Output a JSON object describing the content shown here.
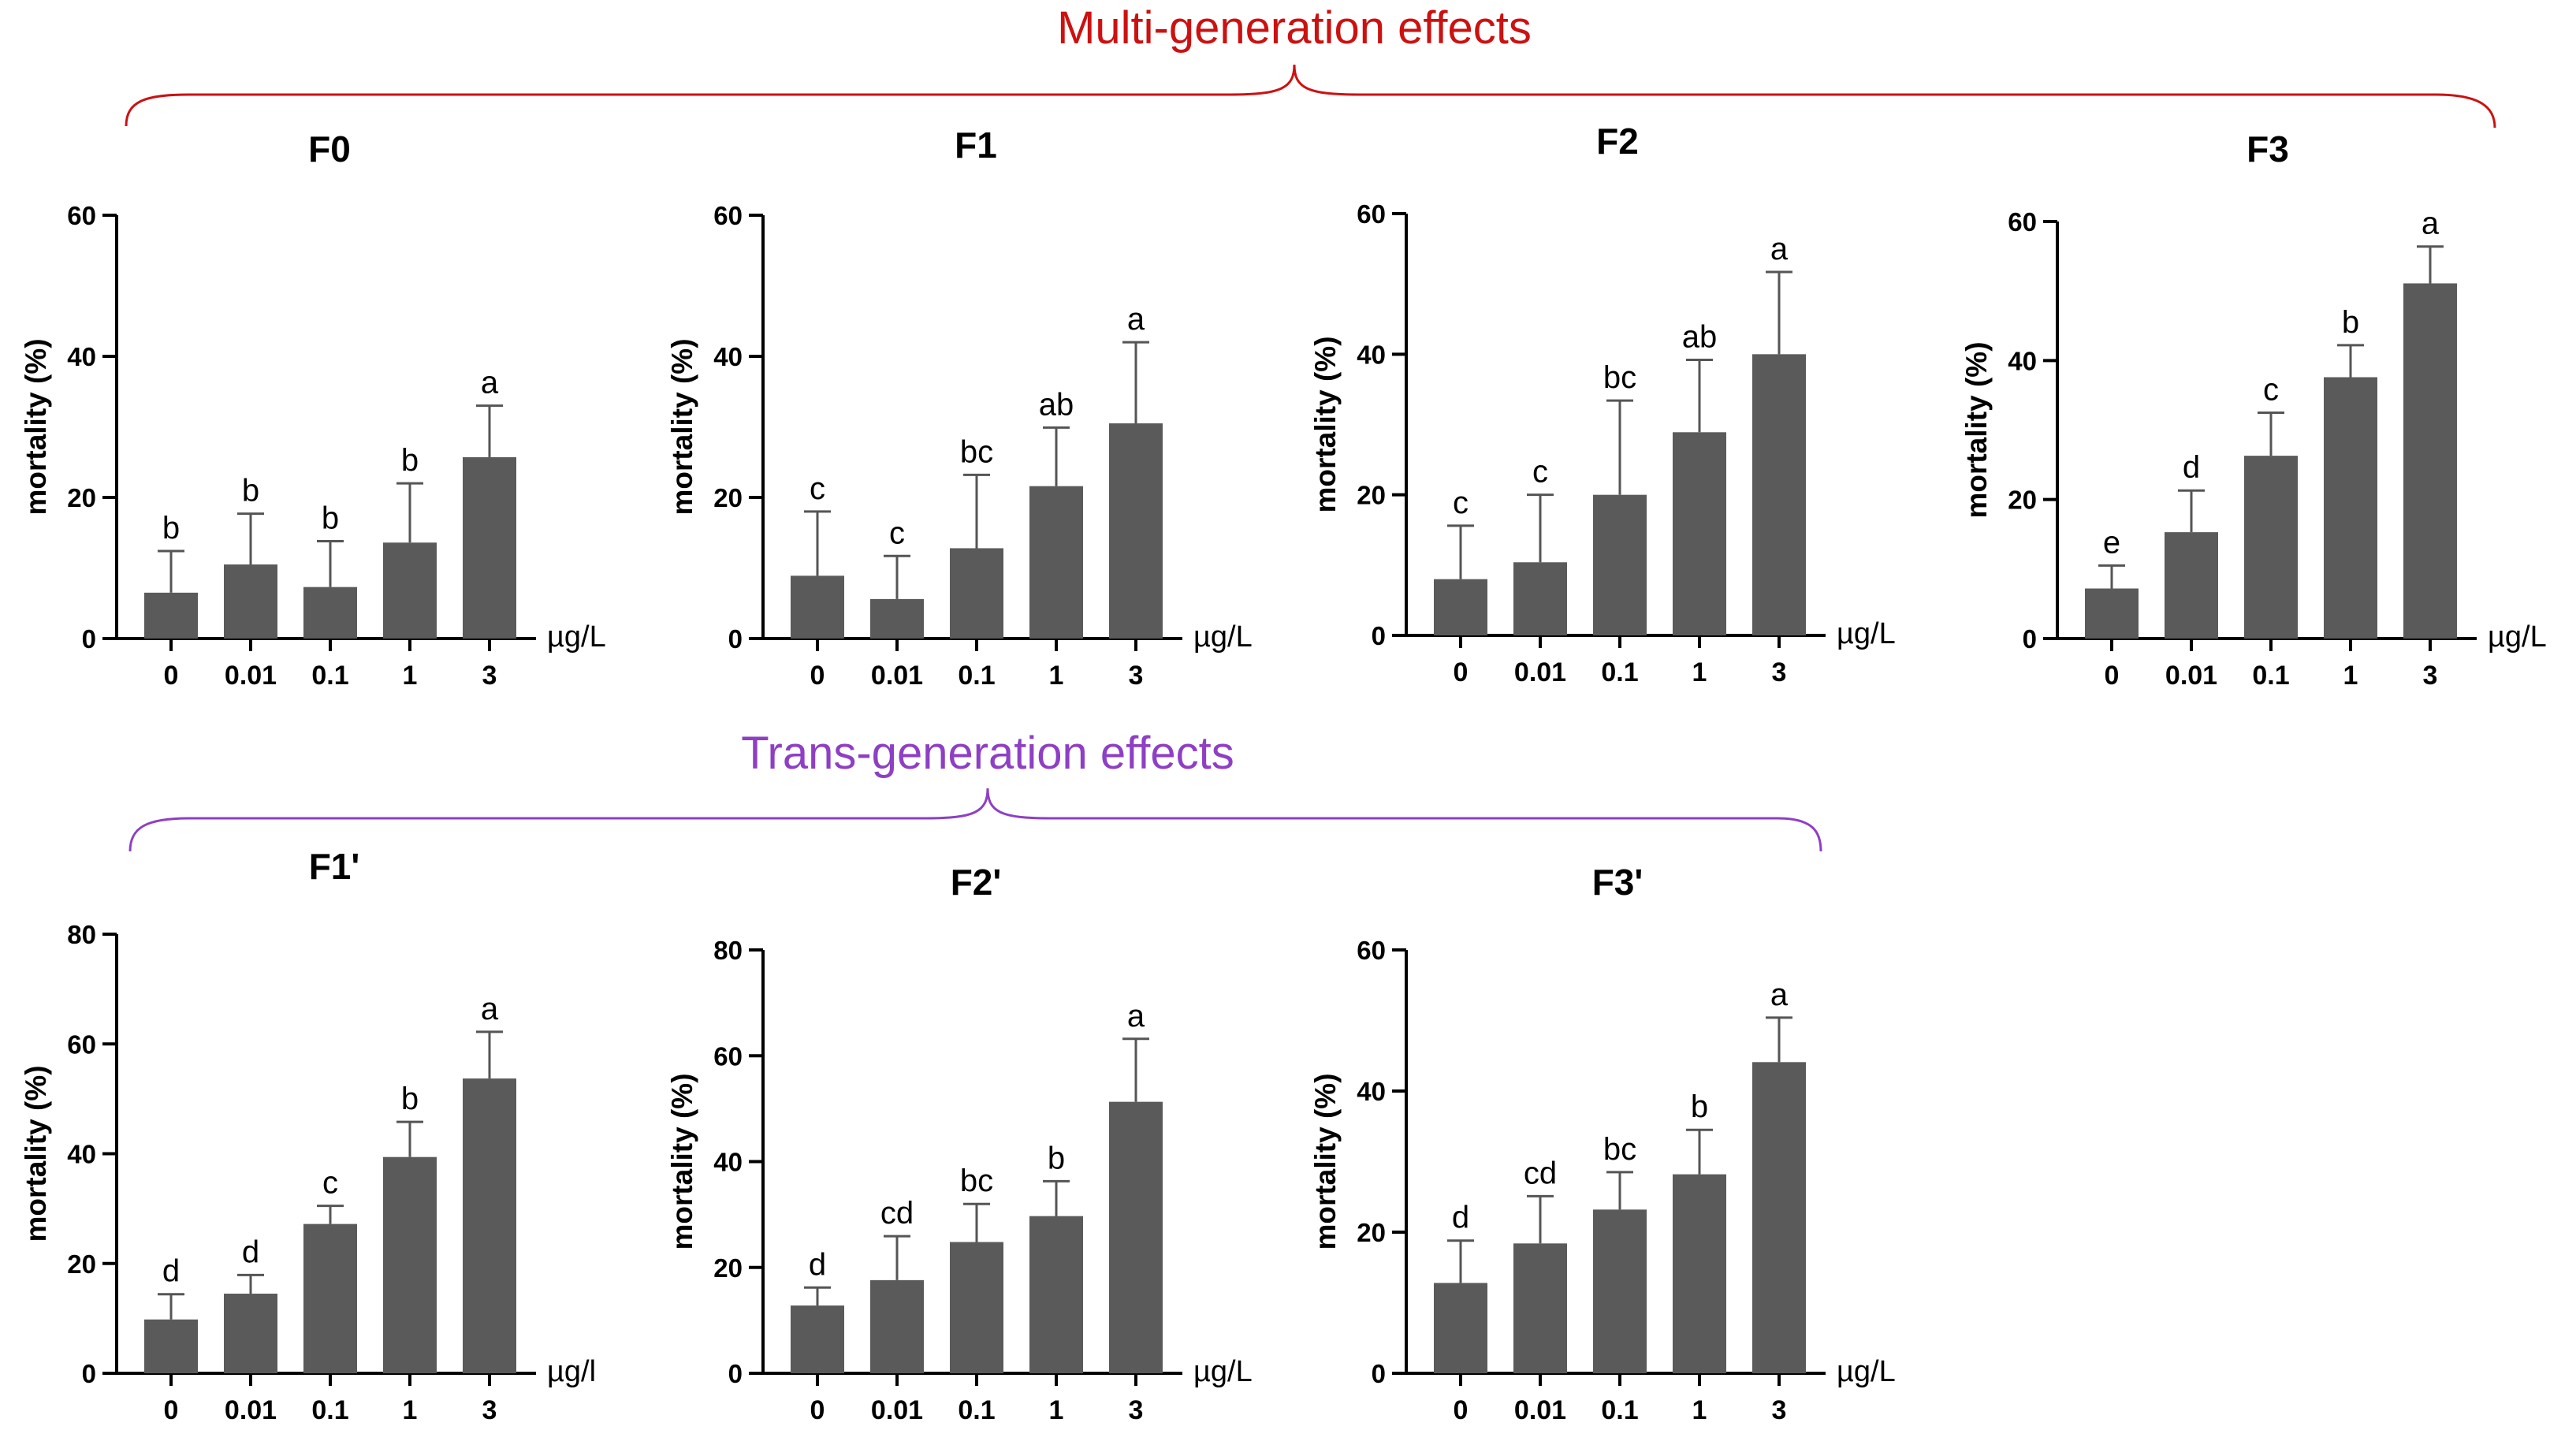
{
  "groups": {
    "multi": {
      "label": "Multi-generation effects",
      "color": "#cc1111"
    },
    "trans": {
      "label": "Trans-generation effects",
      "color": "#8e3fc4"
    }
  },
  "colors": {
    "bar": "#5a5a5a",
    "axis": "#000000",
    "error": "#555555"
  },
  "chart_data": [
    {
      "type": "bar",
      "title": "F0",
      "ylabel": "mortality (%)",
      "xlabel": "µg/L",
      "categories": [
        "0",
        "0.01",
        "0.1",
        "1",
        "3"
      ],
      "values": [
        6.5,
        10.5,
        7.3,
        13.6,
        25.7
      ],
      "errors": [
        5.9,
        7.2,
        6.5,
        8.4,
        7.3
      ],
      "letters": [
        "b",
        "b",
        "b",
        "b",
        "a"
      ],
      "ylim": [
        0,
        60
      ],
      "yticks": [
        "0",
        "20",
        "40",
        "60"
      ]
    },
    {
      "type": "bar",
      "title": "F1",
      "ylabel": "mortality (%)",
      "xlabel": "µg/L",
      "categories": [
        "0",
        "0.01",
        "0.1",
        "1",
        "3"
      ],
      "values": [
        8.9,
        5.6,
        12.8,
        21.6,
        30.5
      ],
      "errors": [
        9.1,
        6.1,
        10.4,
        8.3,
        11.5
      ],
      "letters": [
        "c",
        "c",
        "bc",
        "ab",
        "a"
      ],
      "ylim": [
        0,
        60
      ],
      "yticks": [
        "0",
        "20",
        "40",
        "60"
      ]
    },
    {
      "type": "bar",
      "title": "F2",
      "ylabel": "mortality (%)",
      "xlabel": "µg/L",
      "categories": [
        "0",
        "0.01",
        "0.1",
        "1",
        "3"
      ],
      "values": [
        8.0,
        10.4,
        20.0,
        28.9,
        40.0
      ],
      "errors": [
        7.6,
        9.6,
        13.4,
        10.3,
        11.7
      ],
      "letters": [
        "c",
        "c",
        "bc",
        "ab",
        "a"
      ],
      "ylim": [
        0,
        60
      ],
      "yticks": [
        "0",
        "20",
        "40",
        "60"
      ]
    },
    {
      "type": "bar",
      "title": "F3",
      "ylabel": "mortality (%)",
      "xlabel": "µg/L",
      "categories": [
        "0",
        "0.01",
        "0.1",
        "1",
        "3"
      ],
      "values": [
        7.2,
        15.3,
        26.3,
        37.6,
        51.1
      ],
      "errors": [
        3.3,
        6.0,
        6.2,
        4.6,
        5.3
      ],
      "letters": [
        "e",
        "d",
        "c",
        "b",
        "a"
      ],
      "ylim": [
        0,
        60
      ],
      "yticks": [
        "0",
        "20",
        "40",
        "60"
      ]
    },
    {
      "type": "bar",
      "title": "F1'",
      "ylabel": "mortality (%)",
      "xlabel": "µg/l",
      "categories": [
        "0",
        "0.01",
        "0.1",
        "1",
        "3"
      ],
      "values": [
        9.8,
        14.5,
        27.2,
        39.4,
        53.7
      ],
      "errors": [
        4.6,
        3.4,
        3.3,
        6.4,
        8.5
      ],
      "letters": [
        "d",
        "d",
        "c",
        "b",
        "a"
      ],
      "ylim": [
        0,
        80
      ],
      "yticks": [
        "0",
        "20",
        "40",
        "60",
        "80"
      ]
    },
    {
      "type": "bar",
      "title": "F2'",
      "ylabel": "mortality (%)",
      "xlabel": "µg/L",
      "categories": [
        "0",
        "0.01",
        "0.1",
        "1",
        "3"
      ],
      "values": [
        12.8,
        17.6,
        24.8,
        29.7,
        51.3
      ],
      "errors": [
        3.4,
        8.3,
        7.2,
        6.6,
        11.9
      ],
      "letters": [
        "d",
        "cd",
        "bc",
        "b",
        "a"
      ],
      "ylim": [
        0,
        80
      ],
      "yticks": [
        "0",
        "20",
        "40",
        "60",
        "80"
      ]
    },
    {
      "type": "bar",
      "title": "F3'",
      "ylabel": "mortality (%)",
      "xlabel": "µg/L",
      "categories": [
        "0",
        "0.01",
        "0.1",
        "1",
        "3"
      ],
      "values": [
        12.8,
        18.4,
        23.2,
        28.2,
        44.1
      ],
      "errors": [
        6.0,
        6.7,
        5.3,
        6.3,
        6.3
      ],
      "letters": [
        "d",
        "cd",
        "bc",
        "b",
        "a"
      ],
      "ylim": [
        0,
        60
      ],
      "yticks": [
        "0",
        "20",
        "40",
        "60"
      ]
    }
  ]
}
